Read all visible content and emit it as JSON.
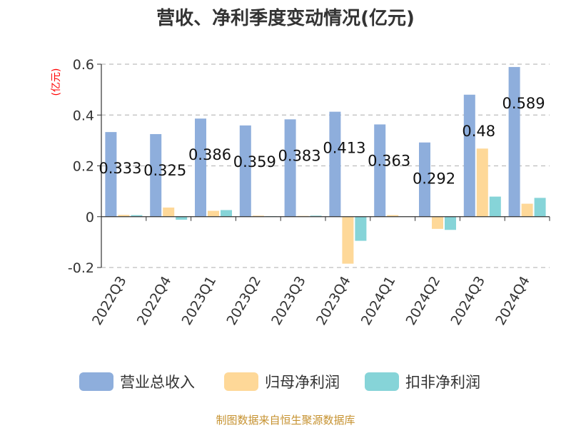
{
  "chart_data": {
    "type": "bar",
    "title": "营收、净利季度变动情况(亿元)",
    "unit_label": "(亿元)",
    "categories": [
      "2022Q3",
      "2022Q4",
      "2023Q1",
      "2023Q2",
      "2023Q3",
      "2023Q4",
      "2024Q1",
      "2024Q2",
      "2024Q3",
      "2024Q4"
    ],
    "series": [
      {
        "name": "营业总收入",
        "color": "#8eaedc",
        "values": [
          0.333,
          0.325,
          0.386,
          0.359,
          0.383,
          0.413,
          0.363,
          0.292,
          0.48,
          0.589
        ]
      },
      {
        "name": "归母净利润",
        "color": "#fed898",
        "values": [
          0.007,
          0.036,
          0.023,
          0.004,
          0.003,
          -0.185,
          0.006,
          -0.048,
          0.268,
          0.051
        ]
      },
      {
        "name": "扣非净利润",
        "color": "#86d4d8",
        "values": [
          0.006,
          -0.012,
          0.026,
          0.002,
          0.004,
          -0.095,
          0.001,
          -0.052,
          0.079,
          0.074
        ]
      }
    ],
    "data_labels": [
      "0.333",
      "0.325",
      "0.386",
      "0.359",
      "0.383",
      "0.413",
      "0.363",
      "0.292",
      "0.48",
      "0.589"
    ],
    "y_ticks": [
      "0.6",
      "0.4",
      "0.2",
      "0",
      "-0.2"
    ],
    "y_tick_values": [
      0.6,
      0.4,
      0.2,
      0,
      -0.2
    ],
    "ylim": [
      -0.2,
      0.6
    ],
    "grid": true,
    "legend_position": "bottom"
  },
  "source": "制图数据来自恒生聚源数据库"
}
